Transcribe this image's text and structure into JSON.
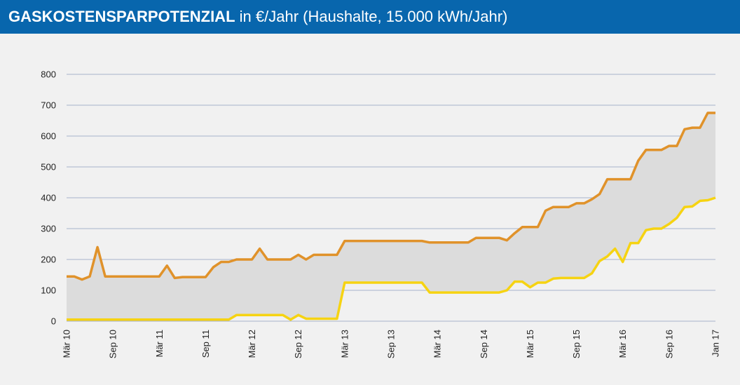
{
  "chart_data": {
    "type": "line",
    "title": "GASKOSTENSPARPOTENZIAL",
    "subtitle": "in €/Jahr (Haushalte, 15.000 kWh/Jahr)",
    "categories": [
      "Mär 10",
      null,
      null,
      null,
      null,
      null,
      "Sep 10",
      null,
      null,
      null,
      null,
      null,
      "Mär 11",
      null,
      null,
      null,
      null,
      null,
      "Sep 11",
      null,
      null,
      null,
      null,
      null,
      "Mär 12",
      null,
      null,
      null,
      null,
      null,
      "Sep 12",
      null,
      null,
      null,
      null,
      null,
      "Mär 13",
      null,
      null,
      null,
      null,
      null,
      "Sep 13",
      null,
      null,
      null,
      null,
      null,
      "Mär 14",
      null,
      null,
      null,
      null,
      null,
      "Sep 14",
      null,
      null,
      null,
      null,
      null,
      "Mär 15",
      null,
      null,
      null,
      null,
      null,
      "Sep 15",
      null,
      null,
      null,
      null,
      null,
      "Mär 16",
      null,
      null,
      null,
      null,
      null,
      "Sep 16",
      null,
      null,
      null,
      null,
      null,
      "Jan 17"
    ],
    "series": [
      {
        "color": "#e0922a",
        "values": [
          145,
          145,
          135,
          145,
          240,
          145,
          145,
          145,
          145,
          145,
          145,
          145,
          145,
          180,
          140,
          143,
          143,
          143,
          143,
          175,
          192,
          192,
          200,
          200,
          200,
          235,
          200,
          200,
          200,
          200,
          215,
          200,
          215,
          215,
          215,
          215,
          260,
          260,
          260,
          260,
          260,
          260,
          260,
          260,
          260,
          260,
          260,
          255,
          255,
          255,
          255,
          255,
          255,
          270,
          270,
          270,
          270,
          262,
          285,
          305,
          305,
          305,
          358,
          370,
          370,
          370,
          382,
          382,
          395,
          412,
          460,
          460,
          460,
          460,
          520,
          555,
          555,
          555,
          568,
          568,
          622,
          627,
          627,
          675,
          675
        ]
      },
      {
        "color": "#f6d312",
        "values": [
          5,
          5,
          5,
          5,
          5,
          5,
          5,
          5,
          5,
          5,
          5,
          5,
          5,
          5,
          5,
          5,
          5,
          5,
          5,
          5,
          5,
          5,
          20,
          20,
          20,
          20,
          20,
          20,
          20,
          5,
          20,
          8,
          8,
          8,
          8,
          8,
          125,
          125,
          125,
          125,
          125,
          125,
          125,
          125,
          125,
          125,
          125,
          93,
          93,
          93,
          93,
          93,
          93,
          93,
          93,
          93,
          93,
          100,
          128,
          128,
          110,
          125,
          125,
          138,
          140,
          140,
          140,
          140,
          155,
          195,
          210,
          235,
          192,
          253,
          253,
          295,
          300,
          300,
          315,
          335,
          370,
          372,
          390,
          392,
          400
        ]
      }
    ],
    "fill_color": "#dcdcdc",
    "ylim": [
      0,
      800
    ],
    "yticks": [
      0,
      100,
      200,
      300,
      400,
      500,
      600,
      700,
      800
    ],
    "grid": true
  }
}
